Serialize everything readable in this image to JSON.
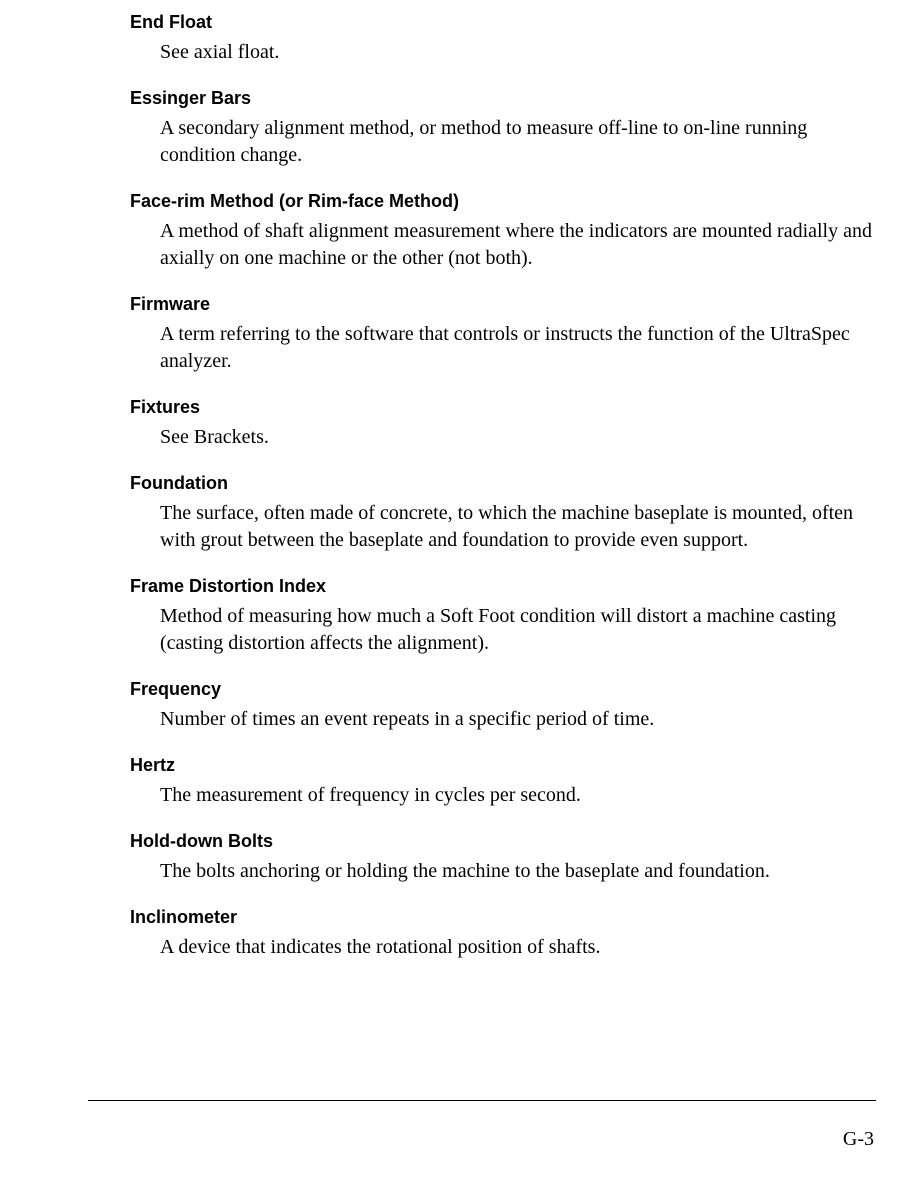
{
  "entries": [
    {
      "term": "End Float",
      "definition": "See axial float."
    },
    {
      "term": "Essinger Bars",
      "definition": "A secondary alignment method, or method to measure off-line to on-line running condition change."
    },
    {
      "term": "Face-rim Method (or Rim-face Method)",
      "definition": "A method of shaft alignment measurement where the indicators are mounted radially and axially on one machine or the other (not both)."
    },
    {
      "term": "Firmware",
      "definition": "A term referring to the software that controls or instructs the function of the UltraSpec analyzer."
    },
    {
      "term": "Fixtures",
      "definition": "See Brackets."
    },
    {
      "term": "Foundation",
      "definition": "The surface, often made of concrete, to which the machine baseplate is mounted, often with grout between the baseplate and foundation to provide even support."
    },
    {
      "term": "Frame Distortion Index",
      "definition": "Method of measuring how much a Soft Foot condition will distort a machine casting (casting distortion affects the alignment)."
    },
    {
      "term": "Frequency",
      "definition": "Number of times an event repeats in a specific period of time."
    },
    {
      "term": "Hertz",
      "definition": "The measurement of frequency in cycles per second."
    },
    {
      "term": "Hold-down Bolts",
      "definition": "The bolts anchoring or holding the machine to the baseplate and foundation."
    },
    {
      "term": "Inclinometer",
      "definition": "A device that indicates the rotational position of shafts."
    }
  ],
  "page_number": "G-3"
}
